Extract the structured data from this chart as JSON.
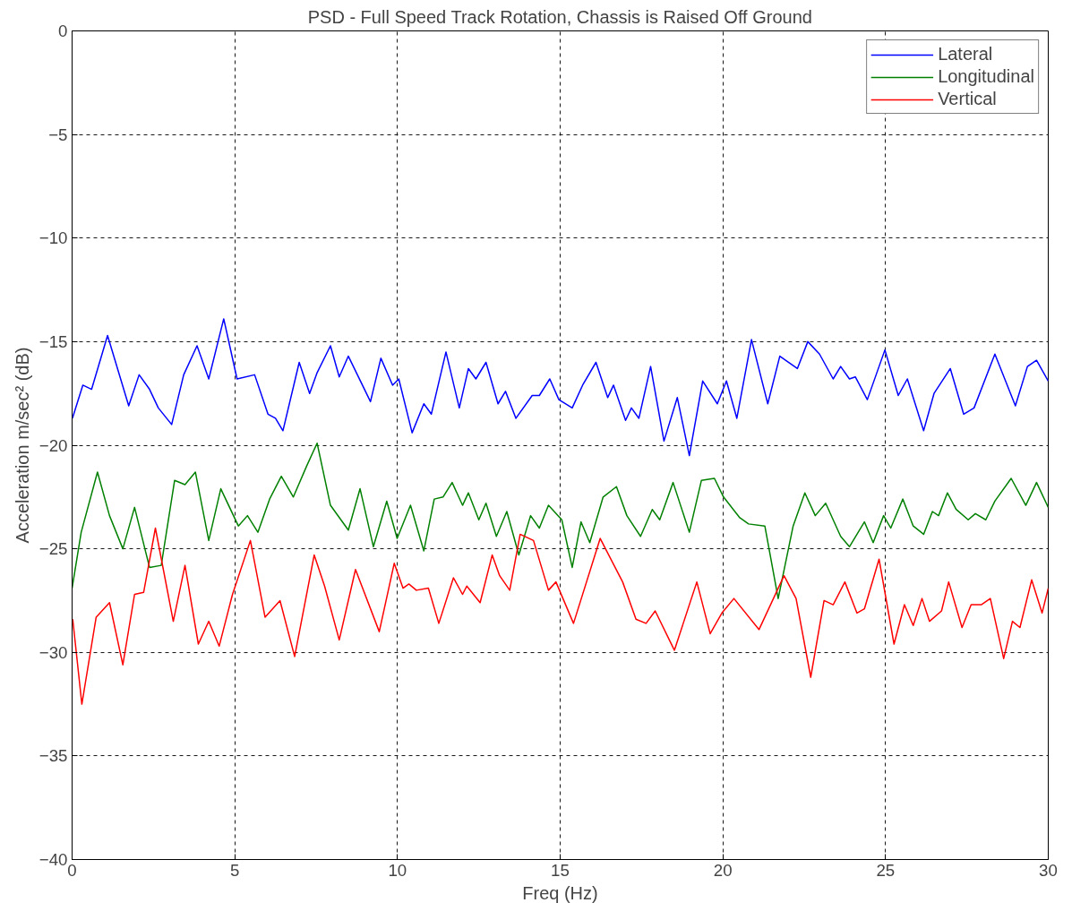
{
  "chart_data": {
    "type": "line",
    "title": "PSD - Full Speed Track Rotation, Chassis is Raised Off Ground",
    "xlabel": "Freq (Hz)",
    "ylabel": "Acceleration m/sec² (dB)",
    "xlim": [
      0,
      30
    ],
    "ylim": [
      -40,
      0
    ],
    "xticks": [
      0,
      5,
      10,
      15,
      20,
      25,
      30
    ],
    "yticks": [
      -40,
      -35,
      -30,
      -25,
      -20,
      -15,
      -10,
      -5,
      0
    ],
    "grid": true,
    "legend": "top right",
    "line_style": "solid",
    "marker": "none",
    "series": [
      {
        "name": "Lateral",
        "color": "#0000ff",
        "x": [
          0.01,
          0.33,
          0.6,
          1.09,
          1.74,
          2.06,
          2.38,
          2.65,
          3.06,
          3.43,
          3.84,
          4.2,
          4.66,
          5.07,
          5.61,
          6.02,
          6.25,
          6.48,
          6.98,
          7.3,
          7.53,
          7.94,
          8.21,
          8.49,
          9.17,
          9.49,
          9.85,
          10.04,
          10.45,
          10.81,
          11.04,
          11.49,
          11.9,
          12.18,
          12.41,
          12.72,
          13.09,
          13.32,
          13.64,
          14.14,
          14.36,
          14.68,
          14.96,
          15.37,
          15.69,
          16.1,
          16.46,
          16.64,
          17.01,
          17.19,
          17.42,
          17.78,
          18.19,
          18.6,
          18.97,
          19.38,
          19.83,
          20.11,
          20.43,
          20.88,
          21.38,
          21.75,
          22.29,
          22.61,
          22.97,
          23.39,
          23.62,
          23.89,
          24.07,
          24.44,
          24.98,
          25.39,
          25.67,
          26.17,
          26.49,
          26.99,
          27.4,
          27.72,
          28.36,
          28.99,
          29.36,
          29.64,
          30
        ],
        "values": [
          -18.7,
          -17.1,
          -17.3,
          -14.7,
          -18.1,
          -16.6,
          -17.3,
          -18.2,
          -19.0,
          -16.6,
          -15.2,
          -16.8,
          -13.9,
          -16.8,
          -16.6,
          -18.5,
          -18.7,
          -19.3,
          -16.0,
          -17.5,
          -16.5,
          -15.2,
          -16.7,
          -15.7,
          -17.9,
          -15.8,
          -17.1,
          -16.8,
          -19.4,
          -18.0,
          -18.5,
          -15.5,
          -18.2,
          -16.3,
          -16.8,
          -16.0,
          -18.0,
          -17.4,
          -18.7,
          -17.6,
          -17.6,
          -16.8,
          -17.8,
          -18.2,
          -17.1,
          -16.0,
          -17.7,
          -17.1,
          -18.8,
          -18.2,
          -18.7,
          -16.2,
          -19.8,
          -17.7,
          -20.5,
          -16.9,
          -18.0,
          -16.9,
          -18.7,
          -14.9,
          -18.0,
          -15.7,
          -16.3,
          -15.0,
          -15.6,
          -16.8,
          -16.2,
          -16.8,
          -16.7,
          -17.8,
          -15.4,
          -17.6,
          -16.8,
          -19.3,
          -17.5,
          -16.3,
          -18.5,
          -18.2,
          -15.6,
          -18.1,
          -16.2,
          -15.9,
          -16.9
        ]
      },
      {
        "name": "Longitudinal",
        "color": "#008000",
        "x": [
          0,
          0.28,
          0.78,
          1.15,
          1.56,
          1.92,
          2.38,
          2.74,
          3.15,
          3.47,
          3.79,
          4.2,
          4.57,
          5.11,
          5.39,
          5.71,
          6.07,
          6.43,
          6.8,
          7.21,
          7.53,
          7.94,
          8.49,
          8.85,
          9.26,
          9.67,
          9.99,
          10.4,
          10.81,
          11.13,
          11.4,
          11.68,
          12.0,
          12.18,
          12.5,
          12.72,
          13.04,
          13.36,
          13.73,
          14.09,
          14.36,
          14.64,
          15.05,
          15.37,
          15.64,
          15.91,
          16.32,
          16.73,
          17.05,
          17.47,
          17.83,
          18.06,
          18.47,
          18.97,
          19.34,
          19.74,
          20.02,
          20.52,
          20.79,
          21.29,
          21.7,
          22.16,
          22.52,
          22.84,
          23.16,
          23.62,
          23.89,
          24.35,
          24.62,
          24.94,
          25.16,
          25.53,
          25.85,
          26.17,
          26.44,
          26.63,
          26.9,
          27.17,
          27.54,
          27.76,
          28.08,
          28.36,
          28.86,
          29.31,
          29.64,
          30
        ],
        "values": [
          -26.9,
          -24.2,
          -21.3,
          -23.4,
          -25.0,
          -23.0,
          -25.9,
          -25.8,
          -21.7,
          -21.9,
          -21.3,
          -24.6,
          -22.1,
          -23.9,
          -23.4,
          -24.2,
          -22.6,
          -21.5,
          -22.5,
          -21.0,
          -19.9,
          -22.9,
          -24.1,
          -22.1,
          -24.9,
          -22.7,
          -24.5,
          -22.9,
          -25.1,
          -22.6,
          -22.5,
          -21.8,
          -22.9,
          -22.3,
          -23.6,
          -22.8,
          -24.4,
          -23.2,
          -25.3,
          -23.4,
          -24.0,
          -22.9,
          -23.6,
          -25.9,
          -23.7,
          -24.7,
          -22.5,
          -22.0,
          -23.4,
          -24.4,
          -23.1,
          -23.6,
          -21.8,
          -24.2,
          -21.7,
          -21.6,
          -22.5,
          -23.5,
          -23.8,
          -23.9,
          -27.4,
          -23.9,
          -22.3,
          -23.4,
          -22.8,
          -24.4,
          -24.9,
          -23.7,
          -24.7,
          -23.4,
          -24.0,
          -22.6,
          -23.9,
          -24.3,
          -23.2,
          -23.4,
          -22.3,
          -23.1,
          -23.6,
          -23.3,
          -23.6,
          -22.7,
          -21.6,
          -22.9,
          -21.8,
          -23.0
        ]
      },
      {
        "name": "Vertical",
        "color": "#ff0000",
        "x": [
          0.02,
          0.3,
          0.74,
          1.15,
          1.56,
          1.92,
          2.2,
          2.56,
          3.11,
          3.47,
          3.88,
          4.2,
          4.52,
          4.93,
          5.48,
          5.93,
          6.39,
          6.84,
          7.44,
          7.76,
          8.21,
          8.71,
          9.44,
          9.9,
          10.17,
          10.35,
          10.58,
          10.95,
          11.27,
          11.72,
          12.0,
          12.13,
          12.54,
          12.91,
          13.14,
          13.45,
          13.77,
          14.18,
          14.64,
          14.87,
          15.41,
          16.23,
          16.92,
          17.33,
          17.64,
          17.92,
          18.51,
          19.2,
          19.61,
          19.97,
          20.34,
          21.11,
          21.88,
          22.25,
          22.7,
          23.11,
          23.39,
          23.75,
          24.12,
          24.35,
          24.8,
          25.26,
          25.58,
          25.85,
          26.12,
          26.35,
          26.72,
          26.94,
          27.35,
          27.63,
          27.94,
          28.22,
          28.63,
          28.9,
          29.13,
          29.49,
          29.81,
          30
        ],
        "values": [
          -28.4,
          -32.5,
          -28.3,
          -27.6,
          -30.6,
          -27.2,
          -27.1,
          -24.0,
          -28.5,
          -25.8,
          -29.6,
          -28.5,
          -29.7,
          -27.2,
          -24.6,
          -28.3,
          -27.5,
          -30.2,
          -25.3,
          -26.8,
          -29.4,
          -26.0,
          -29.0,
          -25.7,
          -26.9,
          -26.7,
          -27.0,
          -26.9,
          -28.6,
          -26.4,
          -27.2,
          -26.8,
          -27.6,
          -25.3,
          -26.3,
          -27.0,
          -24.3,
          -24.6,
          -27.0,
          -26.6,
          -28.6,
          -24.5,
          -26.6,
          -28.4,
          -28.6,
          -28.0,
          -29.9,
          -26.6,
          -29.1,
          -28.1,
          -27.4,
          -28.9,
          -26.3,
          -27.4,
          -31.2,
          -27.5,
          -27.7,
          -26.6,
          -28.1,
          -27.9,
          -25.5,
          -29.6,
          -27.7,
          -28.7,
          -27.4,
          -28.5,
          -28.0,
          -26.6,
          -28.8,
          -27.7,
          -27.7,
          -27.4,
          -30.3,
          -28.5,
          -28.8,
          -26.5,
          -28.1,
          -26.9
        ]
      }
    ]
  }
}
